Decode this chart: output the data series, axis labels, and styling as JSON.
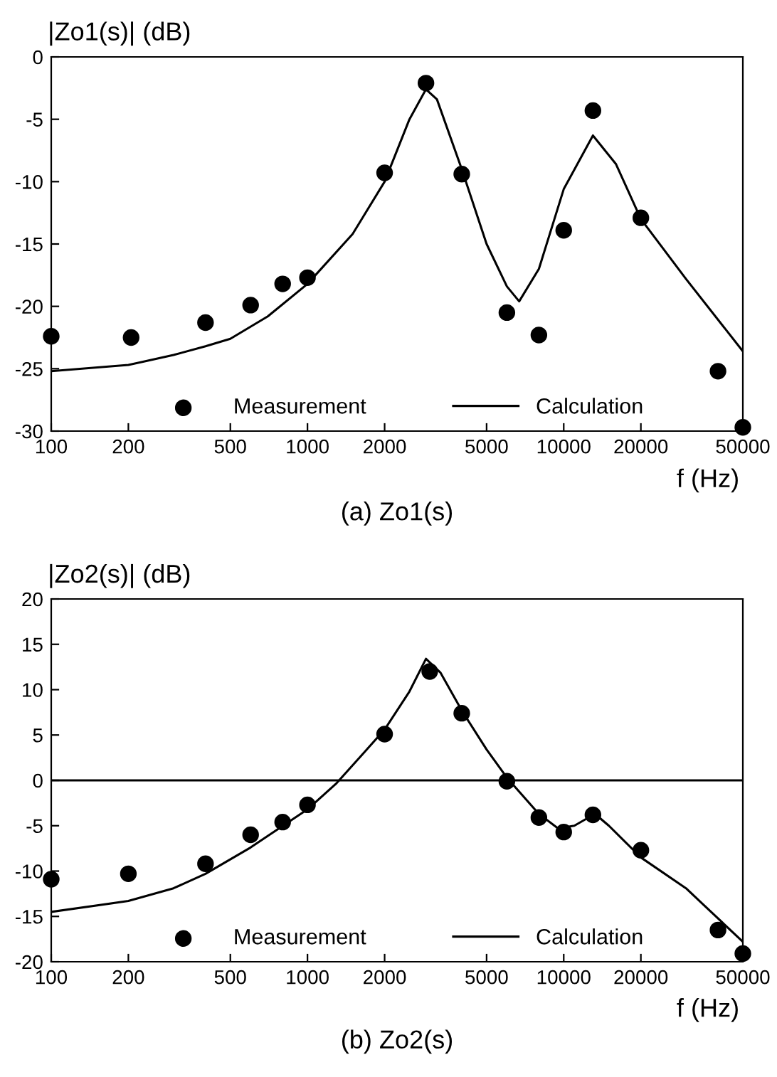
{
  "chart_data": [
    {
      "type": "scatter",
      "title": "(a) Zo1(s)",
      "xlabel": "f (Hz)",
      "ylabel": "|Zo1(s)| (dB)",
      "log": "x",
      "xlim": [
        100,
        50000
      ],
      "ylim": [
        -30,
        0
      ],
      "xticks": [
        100,
        200,
        500,
        1000,
        2000,
        5000,
        10000,
        20000,
        50000
      ],
      "yticks": [
        -30,
        -25,
        -20,
        -15,
        -10,
        -5,
        0
      ],
      "grid": false,
      "legend": "bottom",
      "series": [
        {
          "name": "Measurement",
          "marker": "circle",
          "color": "#000000",
          "x": [
            100,
            205,
            400,
            600,
            800,
            1000,
            2000,
            2900,
            4000,
            6000,
            8000,
            10000,
            13000,
            20000,
            40000,
            50000
          ],
          "values": [
            -22.4,
            -22.5,
            -21.3,
            -19.9,
            -18.2,
            -17.7,
            -9.3,
            -2.1,
            -9.4,
            -20.5,
            -22.3,
            -13.9,
            -4.3,
            -12.9,
            -25.2,
            -29.7
          ]
        },
        {
          "name": "Calculation",
          "type": "line",
          "line_style": "solid",
          "color": "#000000",
          "x": [
            100,
            200,
            300,
            400,
            500,
            700,
            1000,
            1500,
            2000,
            2500,
            2900,
            3200,
            4000,
            5000,
            6000,
            6700,
            8000,
            10000,
            13000,
            16000,
            20000,
            30000,
            50000
          ],
          "values": [
            -25.2,
            -24.7,
            -23.9,
            -23.2,
            -22.6,
            -20.8,
            -18.2,
            -14.2,
            -10.0,
            -5.0,
            -2.6,
            -3.4,
            -9.0,
            -15.0,
            -18.4,
            -19.6,
            -17.0,
            -10.6,
            -6.3,
            -8.6,
            -13.0,
            -17.8,
            -23.6
          ]
        }
      ]
    },
    {
      "type": "scatter",
      "title": "(b) Zo2(s)",
      "xlabel": "f (Hz)",
      "ylabel": "|Zo2(s)| (dB)",
      "log": "x",
      "xlim": [
        100,
        50000
      ],
      "ylim": [
        -20,
        20
      ],
      "xticks": [
        100,
        200,
        500,
        1000,
        2000,
        5000,
        10000,
        20000,
        50000
      ],
      "yticks": [
        -20,
        -15,
        -10,
        -5,
        0,
        5,
        10,
        15,
        20
      ],
      "grid": false,
      "legend": "bottom",
      "ref_lines": [
        {
          "axis": "y",
          "value": 0,
          "color": "#000000",
          "line_style": "solid"
        }
      ],
      "series": [
        {
          "name": "Measurement",
          "marker": "circle",
          "color": "#000000",
          "x": [
            100,
            200,
            400,
            600,
            800,
            1000,
            2000,
            3000,
            4000,
            6000,
            8000,
            10000,
            13000,
            20000,
            40000,
            50000
          ],
          "values": [
            -10.9,
            -10.3,
            -9.2,
            -6.0,
            -4.6,
            -2.7,
            5.1,
            12.0,
            7.4,
            -0.1,
            -4.1,
            -5.7,
            -3.8,
            -7.7,
            -16.5,
            -19.1
          ]
        },
        {
          "name": "Calculation",
          "type": "line",
          "line_style": "solid",
          "color": "#000000",
          "x": [
            100,
            200,
            300,
            400,
            600,
            1000,
            1300,
            2000,
            2500,
            2900,
            3300,
            4000,
            5000,
            6000,
            8000,
            9500,
            11000,
            12500,
            13500,
            15000,
            20000,
            30000,
            50000
          ],
          "values": [
            -14.5,
            -13.3,
            -11.9,
            -10.3,
            -7.4,
            -3.2,
            -0.3,
            5.6,
            9.8,
            13.4,
            11.9,
            7.7,
            3.4,
            0.3,
            -3.7,
            -5.3,
            -5.0,
            -4.1,
            -3.9,
            -5.0,
            -8.5,
            -11.9,
            -17.8
          ]
        }
      ]
    }
  ]
}
